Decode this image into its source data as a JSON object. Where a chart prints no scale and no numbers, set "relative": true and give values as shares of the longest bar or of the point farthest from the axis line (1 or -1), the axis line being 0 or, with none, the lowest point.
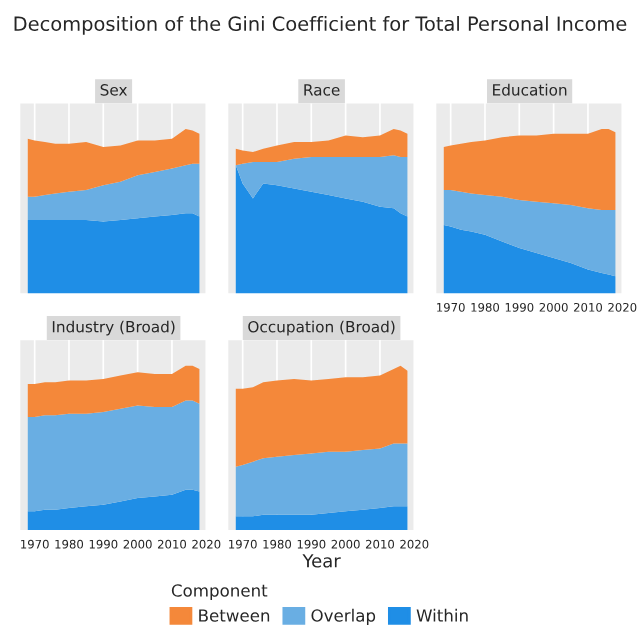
{
  "chart_data": [
    {
      "type": "area",
      "stacked": true,
      "relative": true,
      "title": "Sex",
      "legend": "bottom",
      "legend_title": "Component",
      "annotations": [
        "Decomposition of the Gini Coefficient for Total Personal Income"
      ],
      "x": [
        1968,
        1970,
        1973,
        1976,
        1980,
        1985,
        1990,
        1995,
        2000,
        2005,
        2010,
        2014,
        2016,
        2018
      ],
      "xlim": [
        1965.5,
        2020.5
      ],
      "xticks": [
        1970,
        1980,
        1990,
        2000,
        2010,
        2020
      ],
      "tick_labels": false,
      "grid": "x",
      "series": [
        {
          "name": "Within",
          "color": "#1f8ee6",
          "values": [
            0.45,
            0.45,
            0.45,
            0.45,
            0.45,
            0.45,
            0.44,
            0.45,
            0.46,
            0.47,
            0.48,
            0.49,
            0.49,
            0.47
          ]
        },
        {
          "name": "Overlap",
          "color": "#69aee3",
          "values": [
            0.14,
            0.14,
            0.15,
            0.16,
            0.17,
            0.18,
            0.22,
            0.23,
            0.26,
            0.27,
            0.28,
            0.29,
            0.3,
            0.32
          ]
        },
        {
          "name": "Between",
          "color": "#f4883a",
          "values": [
            0.35,
            0.34,
            0.32,
            0.3,
            0.29,
            0.29,
            0.23,
            0.22,
            0.21,
            0.19,
            0.18,
            0.22,
            0.2,
            0.18
          ]
        }
      ]
    },
    {
      "type": "area",
      "stacked": true,
      "relative": true,
      "title": "Race",
      "x": [
        1968,
        1970,
        1973,
        1976,
        1980,
        1985,
        1990,
        1995,
        2000,
        2005,
        2010,
        2014,
        2016,
        2018
      ],
      "xlim": [
        1965.5,
        2020.5
      ],
      "xticks": [
        1970,
        1980,
        1990,
        2000,
        2010,
        2020
      ],
      "tick_labels": false,
      "grid": "x",
      "series": [
        {
          "color": "#1f8ee6",
          "values": [
            0.78,
            0.67,
            0.58,
            0.67,
            0.66,
            0.64,
            0.62,
            0.6,
            0.58,
            0.56,
            0.53,
            0.52,
            0.49,
            0.47
          ]
        },
        {
          "color": "#69aee3",
          "values": [
            0,
            0.12,
            0.22,
            0.13,
            0.14,
            0.18,
            0.21,
            0.23,
            0.25,
            0.27,
            0.3,
            0.32,
            0.34,
            0.36
          ]
        },
        {
          "color": "#f4883a",
          "values": [
            0.1,
            0.08,
            0.06,
            0.08,
            0.1,
            0.1,
            0.09,
            0.1,
            0.13,
            0.12,
            0.13,
            0.16,
            0.16,
            0.14
          ]
        }
      ]
    },
    {
      "type": "area",
      "stacked": true,
      "relative": true,
      "title": "Education",
      "x": [
        1968,
        1970,
        1973,
        1976,
        1980,
        1985,
        1990,
        1995,
        2000,
        2005,
        2010,
        2014,
        2016,
        2018
      ],
      "xlim": [
        1965.5,
        2020.5
      ],
      "xticks": [
        1970,
        1980,
        1990,
        2000,
        2010,
        2020
      ],
      "tick_labels": "x",
      "grid": "x",
      "series": [
        {
          "color": "#1f8ee6",
          "values": [
            0.42,
            0.41,
            0.39,
            0.38,
            0.36,
            0.32,
            0.28,
            0.25,
            0.22,
            0.19,
            0.15,
            0.13,
            0.12,
            0.11
          ]
        },
        {
          "color": "#69aee3",
          "values": [
            0.21,
            0.22,
            0.23,
            0.23,
            0.24,
            0.27,
            0.29,
            0.31,
            0.33,
            0.35,
            0.37,
            0.38,
            0.39,
            0.4
          ]
        },
        {
          "color": "#f4883a",
          "values": [
            0.26,
            0.27,
            0.29,
            0.31,
            0.33,
            0.36,
            0.39,
            0.4,
            0.42,
            0.43,
            0.45,
            0.49,
            0.49,
            0.47
          ]
        }
      ]
    },
    {
      "type": "area",
      "stacked": true,
      "relative": true,
      "title": "Industry (Broad)",
      "x": [
        1968,
        1970,
        1973,
        1976,
        1980,
        1985,
        1990,
        1995,
        2000,
        2005,
        2010,
        2014,
        2016,
        2018
      ],
      "xlim": [
        1965.5,
        2020.5
      ],
      "xticks": [
        1970,
        1980,
        1990,
        2000,
        2010,
        2020
      ],
      "tick_labels": "x",
      "grid": "x",
      "series": [
        {
          "color": "#1f8ee6",
          "values": [
            0.12,
            0.12,
            0.13,
            0.13,
            0.14,
            0.15,
            0.16,
            0.18,
            0.2,
            0.21,
            0.22,
            0.25,
            0.25,
            0.24
          ]
        },
        {
          "color": "#69aee3",
          "values": [
            0.57,
            0.57,
            0.57,
            0.57,
            0.57,
            0.56,
            0.56,
            0.56,
            0.56,
            0.54,
            0.53,
            0.54,
            0.54,
            0.53
          ]
        },
        {
          "color": "#f4883a",
          "values": [
            0.2,
            0.2,
            0.2,
            0.2,
            0.2,
            0.2,
            0.2,
            0.2,
            0.2,
            0.2,
            0.2,
            0.21,
            0.21,
            0.21
          ]
        }
      ]
    },
    {
      "type": "area",
      "stacked": true,
      "relative": true,
      "title": "Occupation (Broad)",
      "xlabel": "Year",
      "x": [
        1968,
        1970,
        1973,
        1976,
        1980,
        1985,
        1990,
        1995,
        2000,
        2005,
        2010,
        2014,
        2016,
        2018
      ],
      "xlim": [
        1965.5,
        2020.5
      ],
      "xticks": [
        1970,
        1980,
        1990,
        2000,
        2010,
        2020
      ],
      "tick_labels": "x",
      "grid": "x",
      "series": [
        {
          "color": "#1f8ee6",
          "values": [
            0.09,
            0.09,
            0.09,
            0.1,
            0.1,
            0.1,
            0.1,
            0.11,
            0.12,
            0.13,
            0.14,
            0.15,
            0.15,
            0.15
          ]
        },
        {
          "color": "#69aee3",
          "values": [
            0.3,
            0.31,
            0.33,
            0.34,
            0.35,
            0.36,
            0.37,
            0.37,
            0.36,
            0.36,
            0.36,
            0.38,
            0.38,
            0.38
          ]
        },
        {
          "color": "#f4883a",
          "values": [
            0.47,
            0.46,
            0.45,
            0.46,
            0.46,
            0.46,
            0.44,
            0.44,
            0.45,
            0.44,
            0.44,
            0.45,
            0.47,
            0.44
          ]
        }
      ]
    }
  ]
}
